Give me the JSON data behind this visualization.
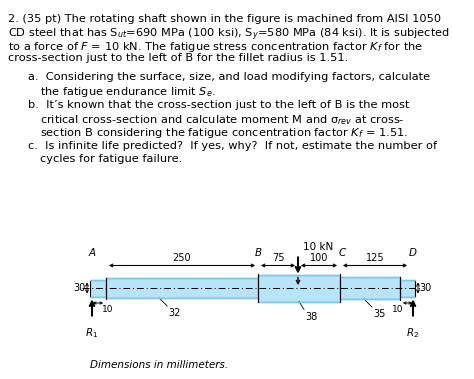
{
  "bg_color": "#ffffff",
  "shaft_fill": "#b8e4f7",
  "shaft_fill_dark": "#7cc8e8",
  "shaft_outline": "#000000",
  "centerline_color": "#555555",
  "para_line1": "2. (35 pt) The rotating shaft shown in the figure is machined from AISI 1050",
  "para_line2": "CD steel that has S",
  "para_line2b": "=690 MPa (100 ksi), S",
  "para_line2c": "=580 MPa (84 ksi). It is subjected",
  "para_line3": "to a force of ",
  "para_line3b": "F",
  "para_line3c": " = 10 kN. The fatigue stress concentration factor ",
  "para_line3d": "K",
  "para_line3e": " for the",
  "para_line4": "cross-section just to the left of B for the fillet radius is 1.51.",
  "item_a1": "a.  Considering the surface, size, and load modifying factors, calculate",
  "item_a2": "     the fatigue endurance limit S",
  "item_b1": "b.  It’s known that the cross-section just to the left of B is the most",
  "item_b2": "     critical cross-section and calculate moment M and σ",
  "item_b2b": " at cross-",
  "item_b3": "     section B considering the fatigue concentration factor K",
  "item_b3b": " = 1.51.",
  "item_c1": "c.  Is infinite life predicted?  If yes, why?  If not, estimate the number of",
  "item_c2": "     cycles for fatigue failure.",
  "footer": "Dimensions in millimeters."
}
